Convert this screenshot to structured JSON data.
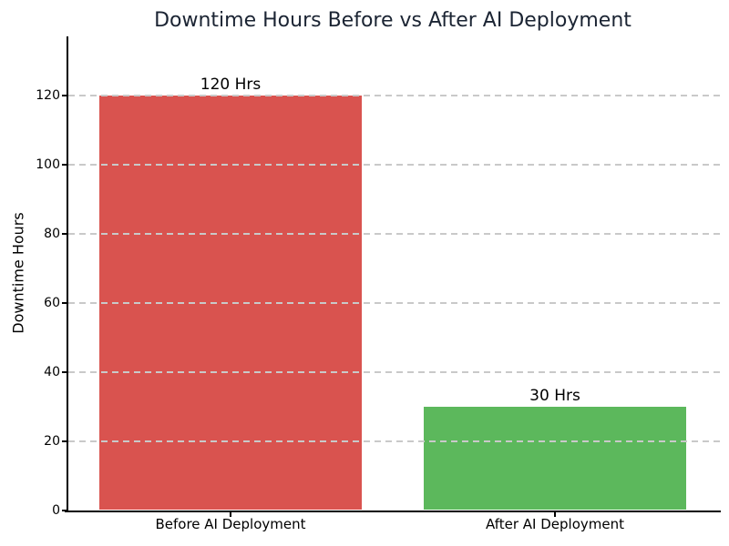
{
  "chart_data": {
    "type": "bar",
    "title": "Downtime Hours Before vs After AI Deployment",
    "xlabel": "",
    "ylabel": "Downtime Hours",
    "categories": [
      "Before AI Deployment",
      "After AI Deployment"
    ],
    "values": [
      120,
      30
    ],
    "value_labels": [
      "120 Hrs",
      "30 Hrs"
    ],
    "bar_colors": [
      "#d9534f",
      "#5cb85c"
    ],
    "yticks": [
      0,
      20,
      40,
      60,
      80,
      100,
      120
    ],
    "ylim": [
      0,
      137
    ],
    "bar_width_frac": 0.81,
    "grid": {
      "axis": "y",
      "style": "dashed",
      "color": "#c9c9c9",
      "on": true
    },
    "legend": "none",
    "title_color": "#1b2433",
    "axis_color": "#000000",
    "background_color": "#ffffff"
  }
}
